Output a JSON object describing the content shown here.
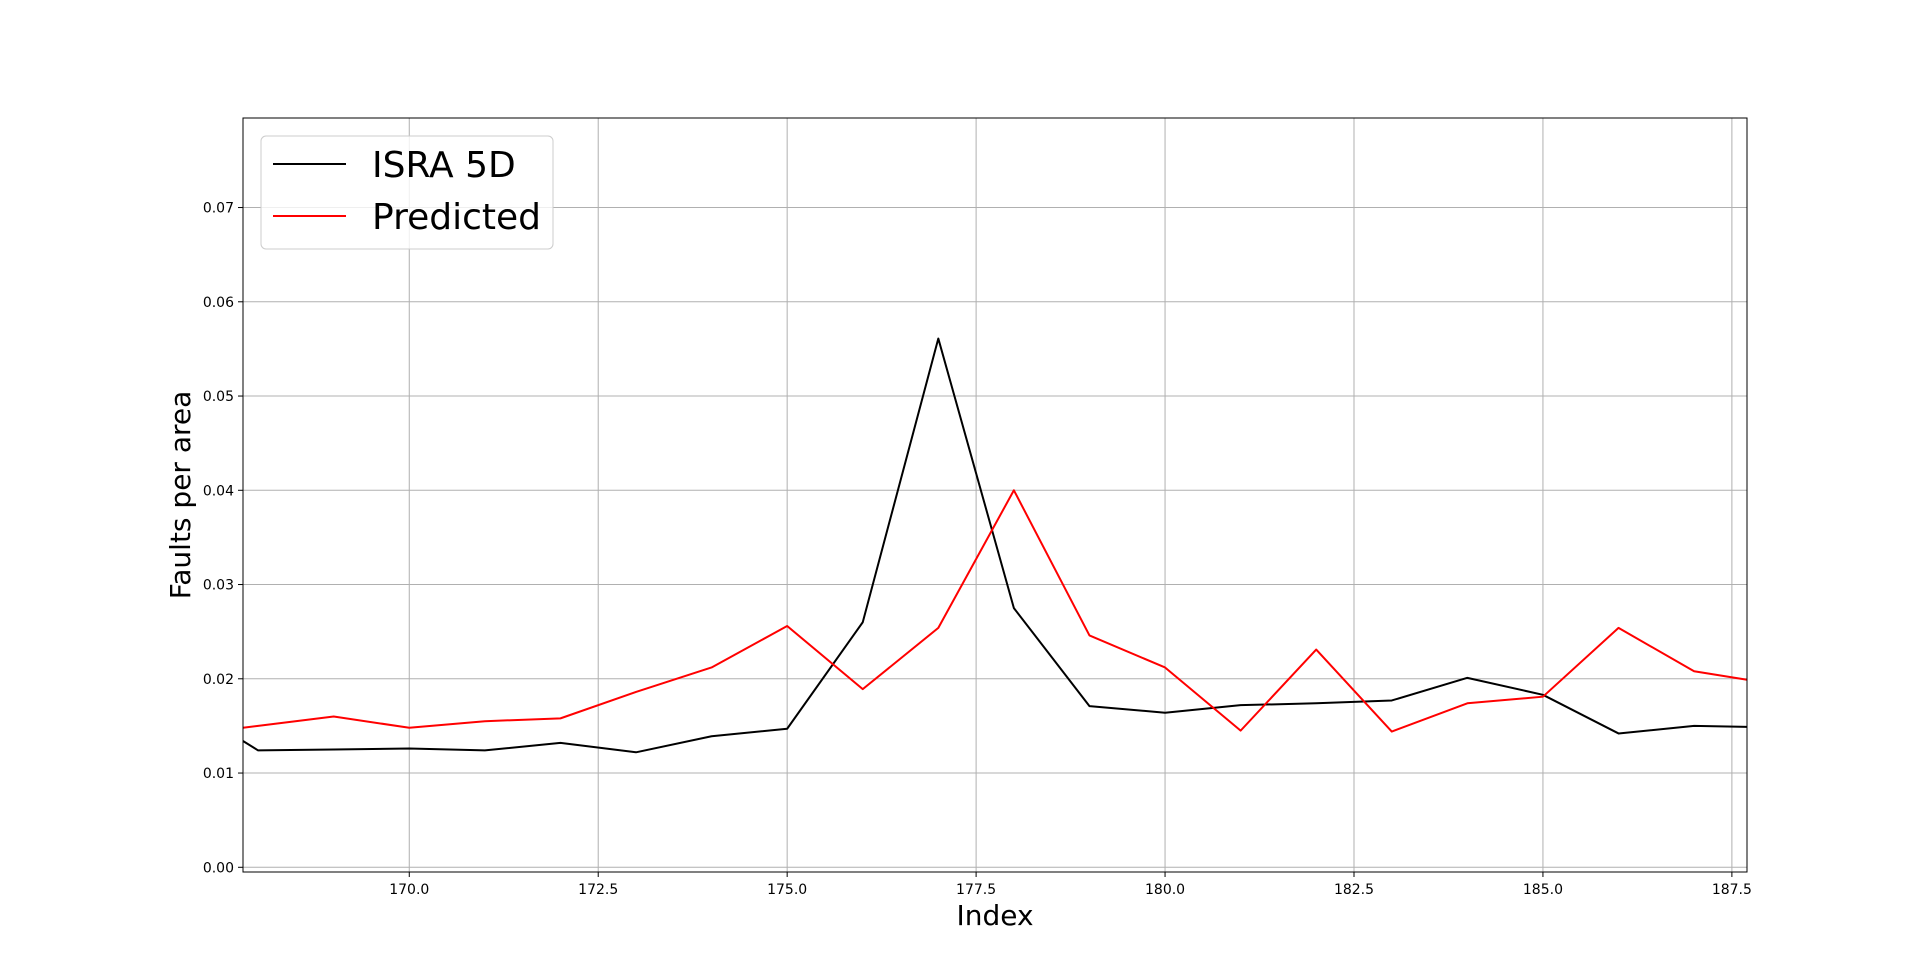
{
  "chart_data": {
    "type": "line",
    "title": "",
    "xlabel": "Index",
    "ylabel": "Faults per area",
    "xlim": [
      167.8,
      187.7
    ],
    "ylim": [
      -0.0005,
      0.0795
    ],
    "xticks": [
      170.0,
      172.5,
      175.0,
      177.5,
      180.0,
      182.5,
      185.0,
      187.5
    ],
    "xtick_labels": [
      "170.0",
      "172.5",
      "175.0",
      "177.5",
      "180.0",
      "182.5",
      "185.0",
      "187.5"
    ],
    "yticks": [
      0.0,
      0.01,
      0.02,
      0.03,
      0.04,
      0.05,
      0.06,
      0.07
    ],
    "ytick_labels": [
      "0.00",
      "0.01",
      "0.02",
      "0.03",
      "0.04",
      "0.05",
      "0.06",
      "0.07"
    ],
    "grid": true,
    "legend_position": "top-left",
    "x": [
      167.8,
      168,
      169,
      170,
      171,
      172,
      173,
      174,
      175,
      176,
      177,
      178,
      179,
      180,
      181,
      182,
      183,
      184,
      185,
      186,
      187,
      187.7
    ],
    "series": [
      {
        "name": "ISRA 5D",
        "color": "#000000",
        "values": [
          0.0134,
          0.0124,
          0.0125,
          0.0126,
          0.0124,
          0.0132,
          0.0122,
          0.0139,
          0.0147,
          0.026,
          0.0561,
          0.0275,
          0.0171,
          0.0164,
          0.0172,
          0.0174,
          0.0177,
          0.0201,
          0.0183,
          0.0142,
          0.015,
          0.0149
        ]
      },
      {
        "name": "Predicted",
        "color": "#ff0000",
        "values": [
          0.0148,
          0.015,
          0.016,
          0.0148,
          0.0155,
          0.0158,
          0.0186,
          0.0212,
          0.0256,
          0.0189,
          0.0254,
          0.04,
          0.0246,
          0.0212,
          0.0145,
          0.0231,
          0.0144,
          0.0174,
          0.0181,
          0.0254,
          0.0208,
          0.0199
        ]
      }
    ]
  }
}
